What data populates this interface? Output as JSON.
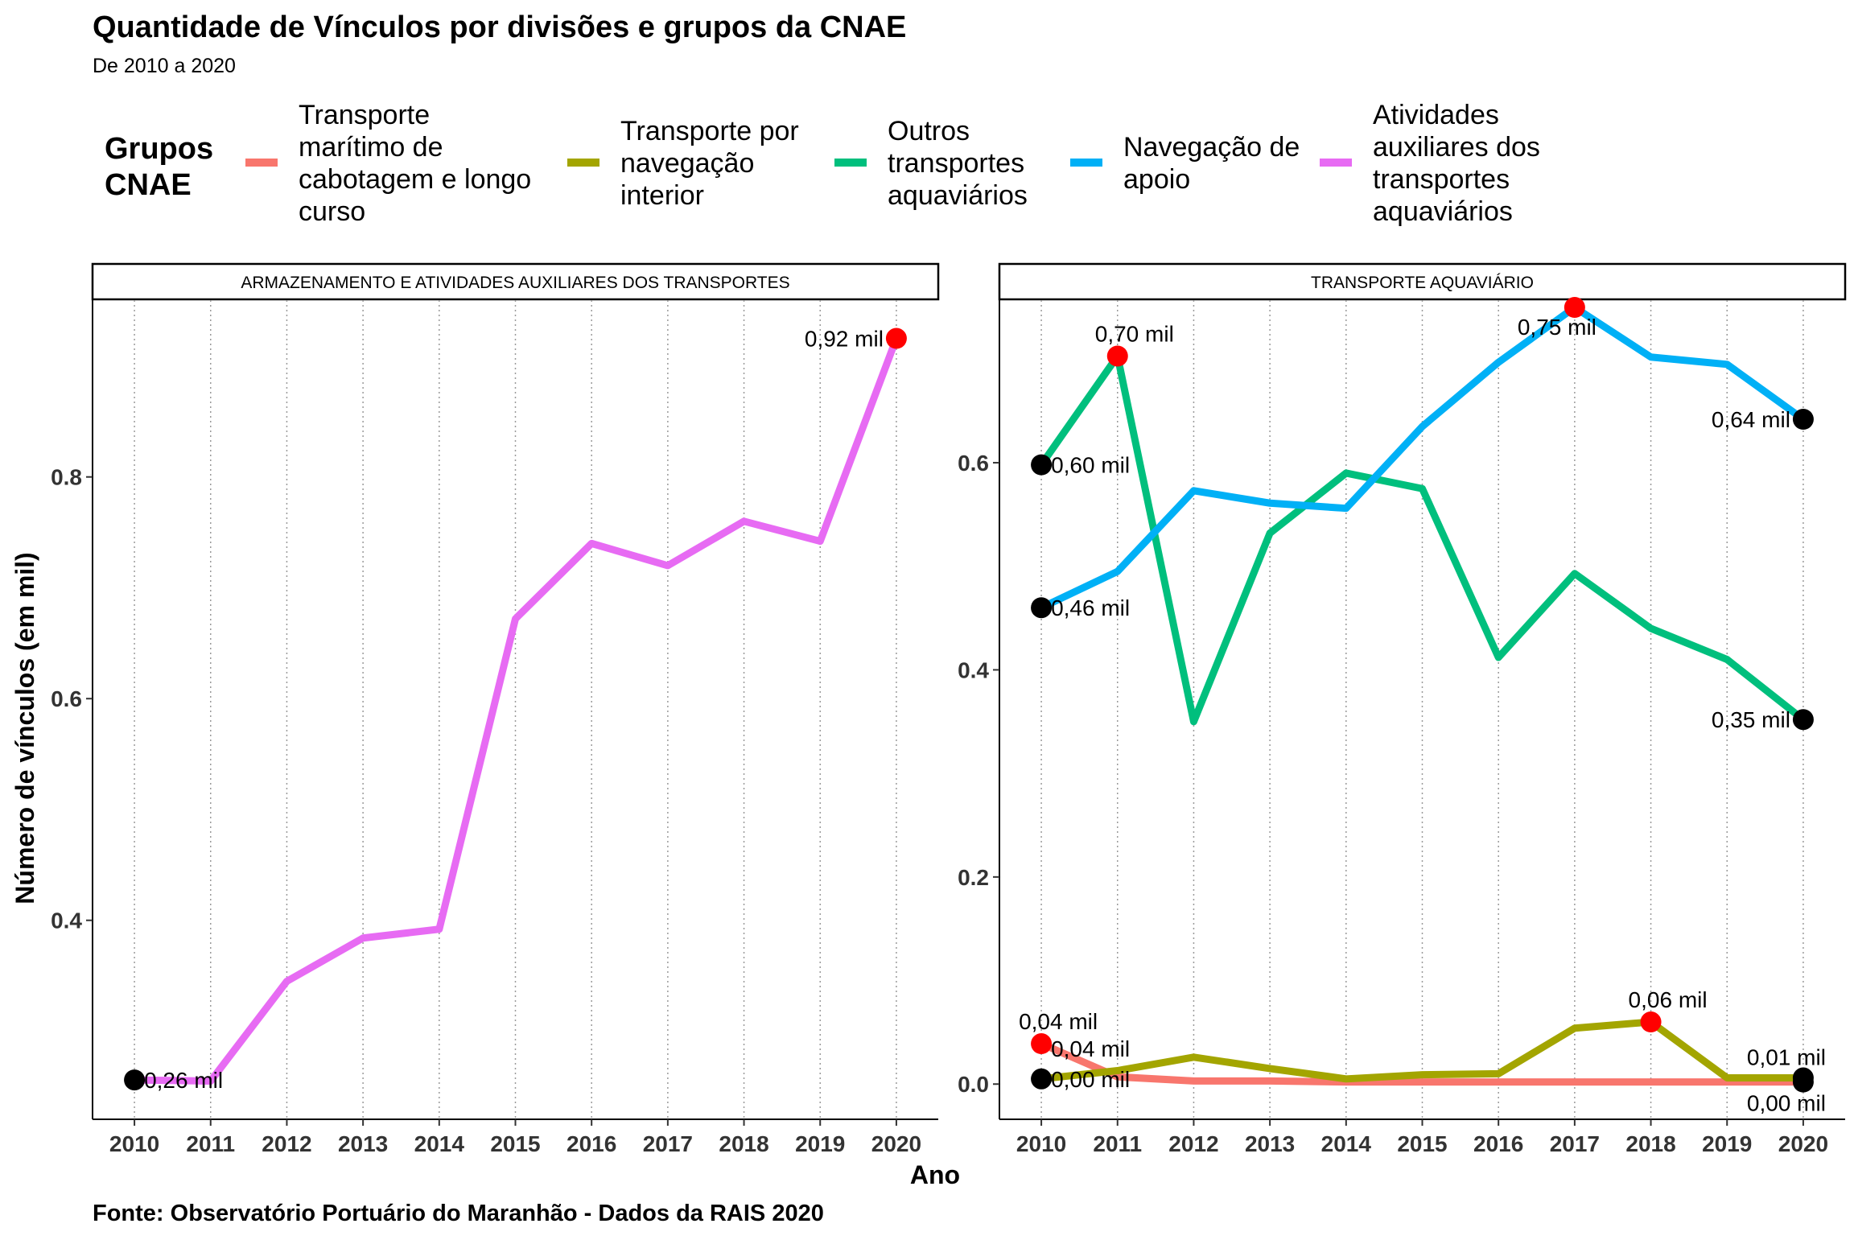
{
  "title": "Quantidade de Vínculos por divisões e grupos da CNAE",
  "subtitle": "De 2010 a 2020",
  "caption": "Fonte: Observatório Portuário do Maranhão - Dados da RAIS 2020",
  "legend": {
    "title_lines": [
      "Grupos",
      "CNAE"
    ],
    "items": [
      {
        "lines": [
          "Transporte",
          "marítimo de",
          "cabotagem e longo",
          "curso"
        ],
        "color": "#F8766D"
      },
      {
        "lines": [
          "Transporte por",
          "navegação",
          "interior"
        ],
        "color": "#A3A500"
      },
      {
        "lines": [
          "Outros",
          "transportes",
          "aquaviários"
        ],
        "color": "#00BF7D"
      },
      {
        "lines": [
          "Navegação de",
          "apoio"
        ],
        "color": "#00B0F6"
      },
      {
        "lines": [
          "Atividades",
          "auxiliares dos",
          "transportes",
          "aquaviários"
        ],
        "color": "#E76BF3"
      }
    ]
  },
  "axes": {
    "xlabel": "Ano",
    "ylabel": "Número de vínculos (em mil)"
  },
  "chart_data": [
    {
      "type": "line",
      "panel_title": "ARMAZENAMENTO E ATIVIDADES AUXILIARES DOS TRANSPORTES",
      "x": [
        2010,
        2011,
        2012,
        2013,
        2014,
        2015,
        2016,
        2017,
        2018,
        2019,
        2020
      ],
      "xticks": [
        "2010",
        "2011",
        "2012",
        "2013",
        "2014",
        "2015",
        "2016",
        "2017",
        "2018",
        "2019",
        "2020"
      ],
      "ylim": [
        0.2205,
        0.9595
      ],
      "yticks": [
        {
          "value": 0.4,
          "label": "0.4"
        },
        {
          "value": 0.6,
          "label": "0.6"
        },
        {
          "value": 0.8,
          "label": "0.8"
        }
      ],
      "series": [
        {
          "name": "Atividades auxiliares dos transportes aquaviários",
          "color": "#E76BF3",
          "values": [
            0.256,
            0.255,
            0.345,
            0.384,
            0.392,
            0.672,
            0.74,
            0.72,
            0.76,
            0.742,
            0.925
          ]
        }
      ],
      "markers": [
        {
          "x": 2010,
          "y": 0.256,
          "color": "#000000",
          "label": "0,26 mil",
          "anchor": "start"
        },
        {
          "x": 2020,
          "y": 0.925,
          "color": "#FF0000",
          "label": "0,92 mil",
          "anchor": "end"
        }
      ]
    },
    {
      "type": "line",
      "panel_title": "TRANSPORTE AQUAVIÁRIO",
      "x": [
        2010,
        2011,
        2012,
        2013,
        2014,
        2015,
        2016,
        2017,
        2018,
        2019,
        2020
      ],
      "xticks": [
        "2010",
        "2011",
        "2012",
        "2013",
        "2014",
        "2015",
        "2016",
        "2017",
        "2018",
        "2019",
        "2020"
      ],
      "ylim": [
        -0.034,
        0.757
      ],
      "yticks": [
        {
          "value": 0.0,
          "label": "0.0"
        },
        {
          "value": 0.2,
          "label": "0.2"
        },
        {
          "value": 0.4,
          "label": "0.4"
        },
        {
          "value": 0.6,
          "label": "0.6"
        }
      ],
      "series": [
        {
          "name": "Transporte marítimo de cabotagem e longo curso",
          "color": "#F8766D",
          "values": [
            0.039,
            0.007,
            0.003,
            0.003,
            0.002,
            0.002,
            0.002,
            0.002,
            0.002,
            0.002,
            0.002
          ]
        },
        {
          "name": "Transporte por navegação interior",
          "color": "#A3A500",
          "values": [
            0.005,
            0.013,
            0.026,
            0.015,
            0.005,
            0.009,
            0.01,
            0.054,
            0.06,
            0.006,
            0.006
          ]
        },
        {
          "name": "Outros transportes aquaviários",
          "color": "#00BF7D",
          "values": [
            0.598,
            0.703,
            0.35,
            0.532,
            0.59,
            0.575,
            0.412,
            0.493,
            0.44,
            0.41,
            0.352
          ]
        },
        {
          "name": "Navegação de apoio",
          "color": "#00B0F6",
          "values": [
            0.46,
            0.495,
            0.573,
            0.561,
            0.556,
            0.635,
            0.697,
            0.75,
            0.702,
            0.695,
            0.642
          ]
        }
      ],
      "markers": [
        {
          "x": 2010,
          "y": 0.598,
          "color": "#000000",
          "label": "0,60 mil",
          "anchor": "start",
          "dy": 10
        },
        {
          "x": 2011,
          "y": 0.703,
          "color": "#FF0000",
          "label": "0,70 mil",
          "anchor": "start",
          "dx": -28,
          "dy": -18
        },
        {
          "x": 2010,
          "y": 0.46,
          "color": "#000000",
          "label": "0,46 mil",
          "anchor": "start",
          "dy": 10
        },
        {
          "x": 2017,
          "y": 0.75,
          "color": "#FF0000",
          "label": "0,75 mil",
          "anchor": "middle",
          "dx": -22,
          "dy": 34
        },
        {
          "x": 2020,
          "y": 0.642,
          "color": "#000000",
          "label": "0,64 mil",
          "anchor": "end",
          "dy": 10
        },
        {
          "x": 2020,
          "y": 0.352,
          "color": "#000000",
          "label": "0,35 mil",
          "anchor": "end",
          "dy": 10
        },
        {
          "x": 2010,
          "y": 0.039,
          "color": "#FF0000",
          "label": "0,04 mil",
          "anchor": "start",
          "dx": -28,
          "dy": -18
        },
        {
          "x": 2010,
          "y": 0.039,
          "color": "#FF0000",
          "label": "0,04 mil",
          "anchor": "start",
          "dx": 12,
          "dy": 16,
          "no_point": true
        },
        {
          "x": 2010,
          "y": 0.005,
          "color": "#000000",
          "label": "0,00 mil",
          "anchor": "start",
          "dy": 10
        },
        {
          "x": 2018,
          "y": 0.06,
          "color": "#FF0000",
          "label": "0,06 mil",
          "anchor": "start",
          "dx": -28,
          "dy": -18
        },
        {
          "x": 2020,
          "y": 0.006,
          "color": "#000000",
          "label": "0,01 mil",
          "anchor": "end",
          "dx": 28,
          "dy": -16
        },
        {
          "x": 2020,
          "y": 0.002,
          "color": "#000000",
          "label": "0,00 mil",
          "anchor": "end",
          "dx": 28,
          "dy": 36
        }
      ]
    }
  ]
}
